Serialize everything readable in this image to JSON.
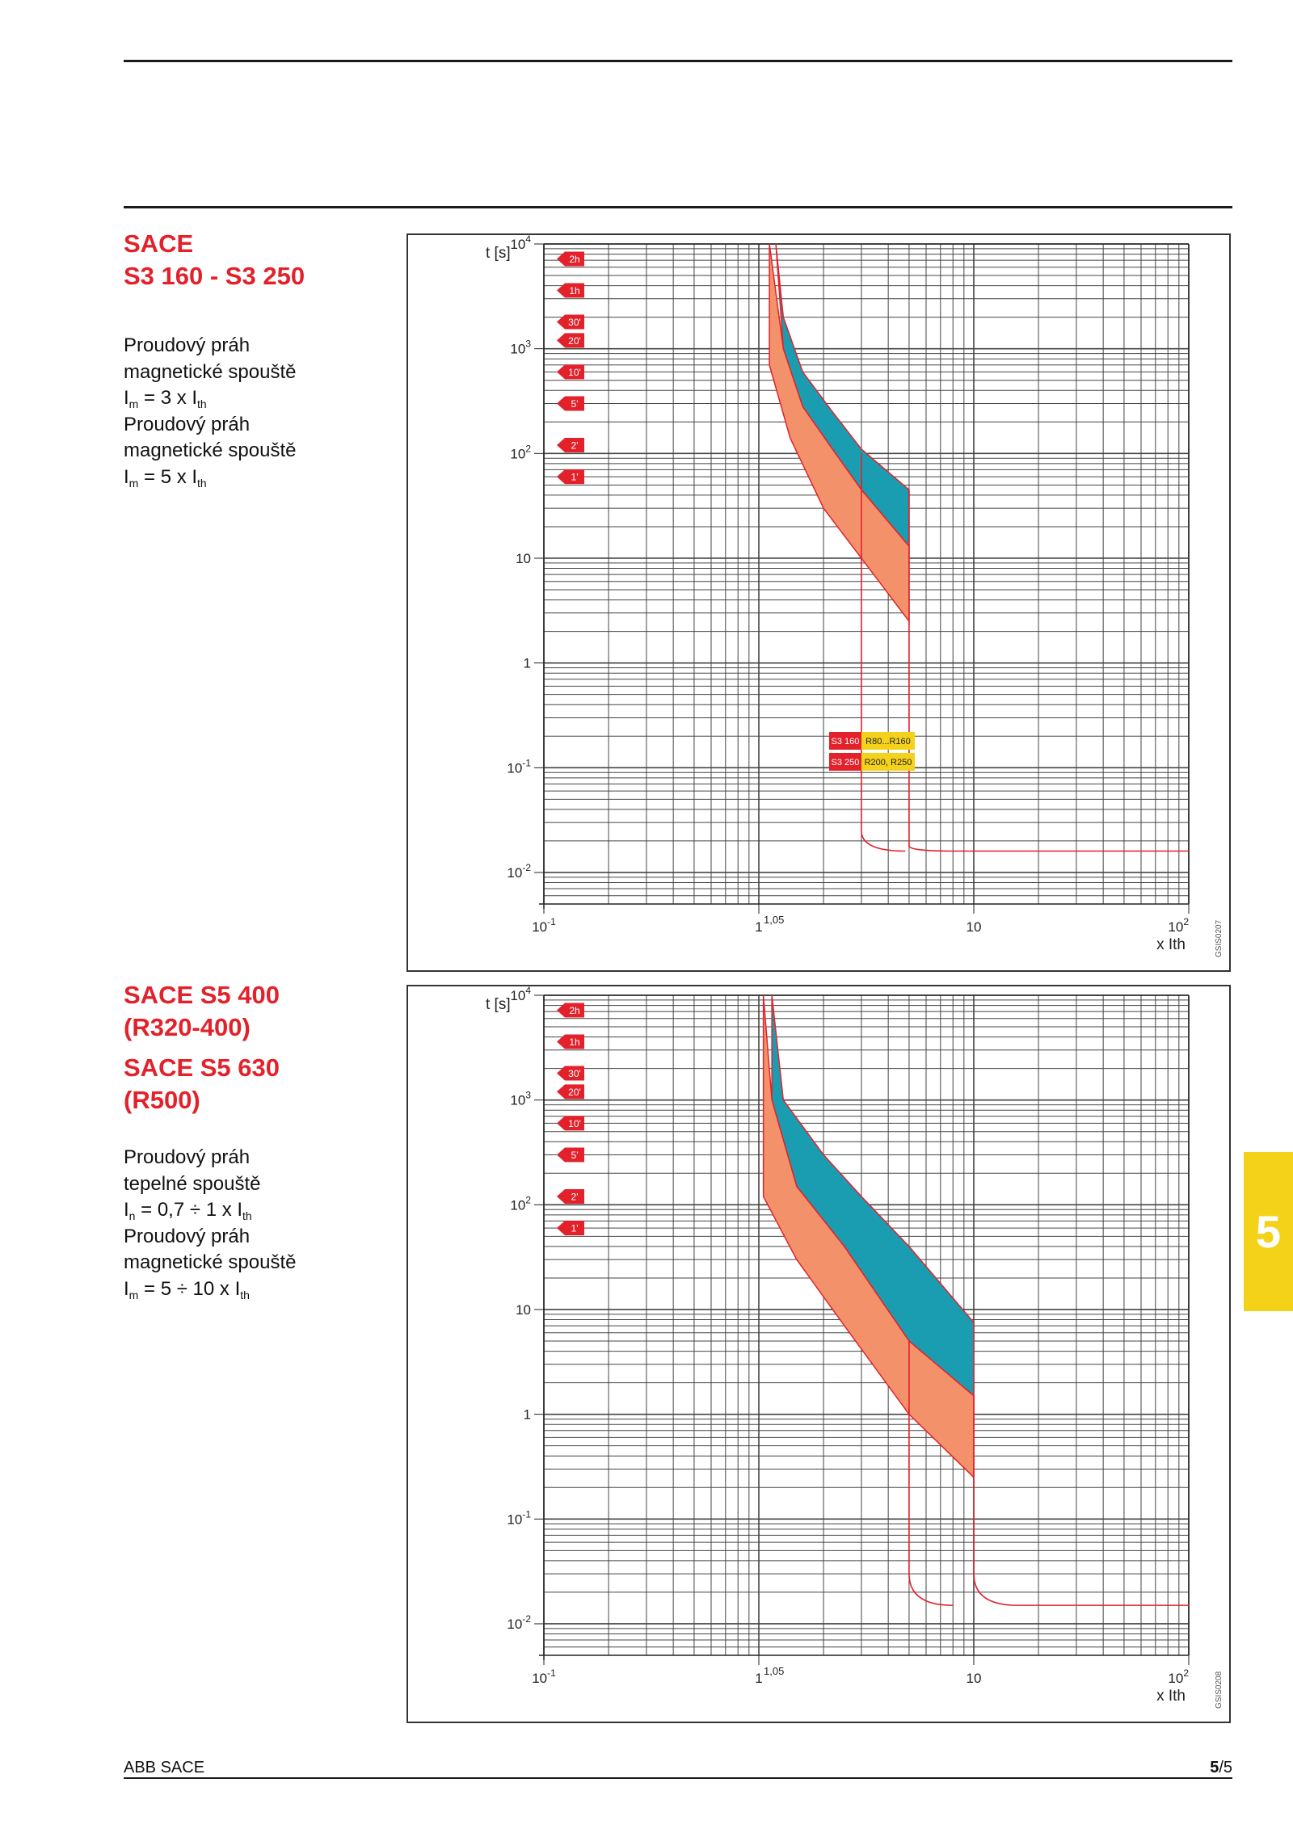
{
  "colors": {
    "accent_red": "#e3212b",
    "red_band": "#f3926a",
    "teal_band": "#1a9db1",
    "curve_line": "#e3212b",
    "tag_red": "#e3212b",
    "tag_yellow": "#f5d21a",
    "chapter_tab": "#f5d21a"
  },
  "section1": {
    "title_line1": "SACE",
    "title_line2": "S3 160 - S3 250",
    "desc": [
      {
        "text": "Proudový práh"
      },
      {
        "text": "magnetické spouště"
      },
      {
        "base": "I",
        "sub": "m",
        "rest": " = 3 x I",
        "sub2": "th"
      },
      {
        "text": "Proudový práh"
      },
      {
        "text": "magnetické spouště"
      },
      {
        "base": "I",
        "sub": "m",
        "rest": " = 5 x I",
        "sub2": "th"
      }
    ]
  },
  "section2": {
    "title_line1": "SACE S5 400",
    "title_line2": "(R320-400)",
    "title_line3": "SACE S5 630",
    "title_line4": "(R500)",
    "desc": [
      {
        "text": "Proudový práh"
      },
      {
        "text": "tepelné spouště"
      },
      {
        "base": "I",
        "sub": "n",
        "rest": " =  0,7 ÷ 1 x I",
        "sub2": "th"
      },
      {
        "text": "Proudový práh"
      },
      {
        "text": "magnetické spouště"
      },
      {
        "base": "I",
        "sub": "m",
        "rest": " = 5 ÷ 10 x I",
        "sub2": "th"
      }
    ]
  },
  "chapter_tab": "5",
  "footer": {
    "left": "ABB SACE",
    "page_bold": "5",
    "page_rest": "/5"
  },
  "chart_data": [
    {
      "type": "area",
      "title": "",
      "ylabel": "t [s]",
      "xlabel": "x Ith",
      "x_scale": "log",
      "y_scale": "log",
      "xlim": [
        0.1,
        100
      ],
      "ylim": [
        0.005,
        10000
      ],
      "grid": true,
      "x_ticks": [
        {
          "base": "10",
          "exp": "-1",
          "value": 0.1
        },
        {
          "base": "1",
          "exp": "",
          "value": 1
        },
        {
          "base": "10",
          "exp": "",
          "value": 10
        },
        {
          "base": "10",
          "exp": "2",
          "value": 100
        }
      ],
      "y_ticks": [
        {
          "base": "10",
          "exp": "4",
          "value": 10000
        },
        {
          "base": "10",
          "exp": "3",
          "value": 1000
        },
        {
          "base": "10",
          "exp": "2",
          "value": 100
        },
        {
          "base": "10",
          "exp": "",
          "value": 10
        },
        {
          "base": "1",
          "exp": "",
          "value": 1
        },
        {
          "base": "10",
          "exp": "-1",
          "value": 0.1
        },
        {
          "base": "10",
          "exp": "-2",
          "value": 0.01
        }
      ],
      "x_annotation": "1,05",
      "time_markers": [
        {
          "label": "2h",
          "t": 7200
        },
        {
          "label": "1h",
          "t": 3600
        },
        {
          "label": "30'",
          "t": 1800
        },
        {
          "label": "20'",
          "t": 1200
        },
        {
          "label": "10'",
          "t": 600
        },
        {
          "label": "5'",
          "t": 300
        },
        {
          "label": "2'",
          "t": 120
        },
        {
          "label": "1'",
          "t": 60
        }
      ],
      "series": [
        {
          "band": "teal",
          "upper": [
            [
              1.2,
              10000
            ],
            [
              1.3,
              2000
            ],
            [
              1.6,
              600
            ],
            [
              2.2,
              250
            ],
            [
              3,
              110
            ],
            [
              5,
              45
            ]
          ],
          "lower": [
            [
              1.2,
              10000
            ],
            [
              1.3,
              1000
            ],
            [
              1.6,
              280
            ],
            [
              2.2,
              110
            ],
            [
              3,
              45
            ],
            [
              5,
              13
            ]
          ]
        },
        {
          "band": "red",
          "upper": [
            [
              1.12,
              10000
            ],
            [
              1.3,
              1000
            ],
            [
              1.6,
              280
            ],
            [
              2.2,
              110
            ],
            [
              3,
              45
            ],
            [
              5,
              13
            ]
          ],
          "lower": [
            [
              1.12,
              10000
            ],
            [
              1.12,
              700
            ],
            [
              1.4,
              140
            ],
            [
              2,
              30
            ],
            [
              3,
              10
            ],
            [
              5,
              2.5
            ]
          ]
        }
      ],
      "magnetic_lines": [
        {
          "x": 3,
          "t_top": 100,
          "knee": 0.025
        },
        {
          "x": 5,
          "t_top": 45,
          "knee": 0.018
        }
      ],
      "instant_tail_t": 0.016,
      "legend_tags": [
        {
          "model": "S3 160",
          "range": "R80...R160"
        },
        {
          "model": "S3 250",
          "range": "R200, R250"
        }
      ],
      "code": "GSIS0207"
    },
    {
      "type": "area",
      "title": "",
      "ylabel": "t [s]",
      "xlabel": "x Ith",
      "x_scale": "log",
      "y_scale": "log",
      "xlim": [
        0.1,
        100
      ],
      "ylim": [
        0.005,
        10000
      ],
      "grid": true,
      "x_ticks": [
        {
          "base": "10",
          "exp": "-1",
          "value": 0.1
        },
        {
          "base": "1",
          "exp": "",
          "value": 1
        },
        {
          "base": "10",
          "exp": "",
          "value": 10
        },
        {
          "base": "10",
          "exp": "2",
          "value": 100
        }
      ],
      "y_ticks": [
        {
          "base": "10",
          "exp": "4",
          "value": 10000
        },
        {
          "base": "10",
          "exp": "3",
          "value": 1000
        },
        {
          "base": "10",
          "exp": "2",
          "value": 100
        },
        {
          "base": "10",
          "exp": "",
          "value": 10
        },
        {
          "base": "1",
          "exp": "",
          "value": 1
        },
        {
          "base": "10",
          "exp": "-1",
          "value": 0.1
        },
        {
          "base": "10",
          "exp": "-2",
          "value": 0.01
        }
      ],
      "x_annotation": "1,05",
      "time_markers": [
        {
          "label": "2h",
          "t": 7200
        },
        {
          "label": "1h",
          "t": 3600
        },
        {
          "label": "30'",
          "t": 1800
        },
        {
          "label": "20'",
          "t": 1200
        },
        {
          "label": "10'",
          "t": 600
        },
        {
          "label": "5'",
          "t": 300
        },
        {
          "label": "2'",
          "t": 120
        },
        {
          "label": "1'",
          "t": 60
        }
      ],
      "series": [
        {
          "band": "teal",
          "upper": [
            [
              1.15,
              10000
            ],
            [
              1.3,
              1000
            ],
            [
              2,
              300
            ],
            [
              3,
              120
            ],
            [
              5,
              40
            ],
            [
              10,
              7.5
            ]
          ],
          "lower": [
            [
              1.15,
              10000
            ],
            [
              1.15,
              1000
            ],
            [
              1.5,
              150
            ],
            [
              2.5,
              40
            ],
            [
              5,
              5
            ],
            [
              10,
              1.5
            ]
          ]
        },
        {
          "band": "red",
          "upper": [
            [
              1.05,
              10000
            ],
            [
              1.15,
              1000
            ],
            [
              1.5,
              150
            ],
            [
              2.5,
              40
            ],
            [
              5,
              5
            ],
            [
              10,
              1.5
            ]
          ],
          "lower": [
            [
              1.05,
              10000
            ],
            [
              1.05,
              120
            ],
            [
              1.5,
              30
            ],
            [
              2.5,
              7
            ],
            [
              5,
              1
            ],
            [
              10,
              0.25
            ]
          ]
        }
      ],
      "magnetic_lines": [
        {
          "x": 5,
          "t_top": 5,
          "knee": 0.03
        },
        {
          "x": 10,
          "t_top": 1.5,
          "knee": 0.03
        }
      ],
      "instant_tail_t": 0.015,
      "legend_tags": [],
      "code": "GSIS0208"
    }
  ]
}
